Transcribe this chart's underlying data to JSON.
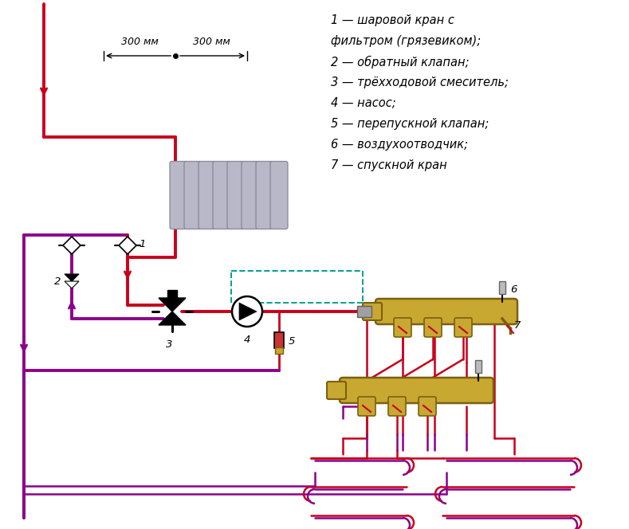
{
  "red": "#c8001a",
  "purple": "#8B008B",
  "gold_body": "#c8a830",
  "gold_edge": "#7a6010",
  "teal_dash": "#00a090",
  "gray_rad": "#b8b8c8",
  "gray_rad_edge": "#888898",
  "dim_texts": [
    "300 мм",
    "300 мм"
  ],
  "legend_lines": [
    "1 — шаровой кран с",
    "фильтром (грязевиком);",
    "2 — обратный клапан;",
    "3 — трёхходовой смеситель;",
    "4 — насос;",
    "5 — перепускной клапан;",
    "6 — воздухоотводчик;",
    "7 — спускной кран"
  ]
}
